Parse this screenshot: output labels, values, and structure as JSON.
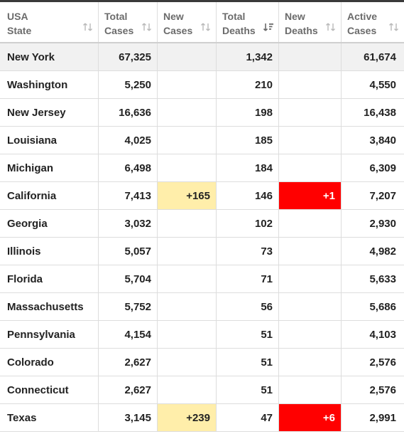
{
  "headers": [
    {
      "line1": "USA",
      "line2": "State"
    },
    {
      "line1": "Total",
      "line2": "Cases"
    },
    {
      "line1": "New",
      "line2": "Cases"
    },
    {
      "line1": "Total",
      "line2": "Deaths"
    },
    {
      "line1": "New",
      "line2": "Deaths"
    },
    {
      "line1": "Active",
      "line2": "Cases"
    }
  ],
  "colors": {
    "new_cases_bg": "#ffeeaa",
    "new_deaths_bg": "#ff0000",
    "first_row_bg": "#f1f1f1"
  },
  "icons": {
    "sort": "sort-arrows-icon",
    "sort_active": "sort-descending-icon"
  },
  "rows": [
    {
      "state": "New York",
      "total_cases": "67,325",
      "new_cases": "",
      "total_deaths": "1,342",
      "new_deaths": "",
      "active_cases": "61,674"
    },
    {
      "state": "Washington",
      "total_cases": "5,250",
      "new_cases": "",
      "total_deaths": "210",
      "new_deaths": "",
      "active_cases": "4,550"
    },
    {
      "state": "New Jersey",
      "total_cases": "16,636",
      "new_cases": "",
      "total_deaths": "198",
      "new_deaths": "",
      "active_cases": "16,438"
    },
    {
      "state": "Louisiana",
      "total_cases": "4,025",
      "new_cases": "",
      "total_deaths": "185",
      "new_deaths": "",
      "active_cases": "3,840"
    },
    {
      "state": "Michigan",
      "total_cases": "6,498",
      "new_cases": "",
      "total_deaths": "184",
      "new_deaths": "",
      "active_cases": "6,309"
    },
    {
      "state": "California",
      "total_cases": "7,413",
      "new_cases": "+165",
      "total_deaths": "146",
      "new_deaths": "+1",
      "active_cases": "7,207"
    },
    {
      "state": "Georgia",
      "total_cases": "3,032",
      "new_cases": "",
      "total_deaths": "102",
      "new_deaths": "",
      "active_cases": "2,930"
    },
    {
      "state": "Illinois",
      "total_cases": "5,057",
      "new_cases": "",
      "total_deaths": "73",
      "new_deaths": "",
      "active_cases": "4,982"
    },
    {
      "state": "Florida",
      "total_cases": "5,704",
      "new_cases": "",
      "total_deaths": "71",
      "new_deaths": "",
      "active_cases": "5,633"
    },
    {
      "state": "Massachusetts",
      "total_cases": "5,752",
      "new_cases": "",
      "total_deaths": "56",
      "new_deaths": "",
      "active_cases": "5,686"
    },
    {
      "state": "Pennsylvania",
      "total_cases": "4,154",
      "new_cases": "",
      "total_deaths": "51",
      "new_deaths": "",
      "active_cases": "4,103"
    },
    {
      "state": "Colorado",
      "total_cases": "2,627",
      "new_cases": "",
      "total_deaths": "51",
      "new_deaths": "",
      "active_cases": "2,576"
    },
    {
      "state": "Connecticut",
      "total_cases": "2,627",
      "new_cases": "",
      "total_deaths": "51",
      "new_deaths": "",
      "active_cases": "2,576"
    },
    {
      "state": "Texas",
      "total_cases": "3,145",
      "new_cases": "+239",
      "total_deaths": "47",
      "new_deaths": "+6",
      "active_cases": "2,991"
    }
  ]
}
